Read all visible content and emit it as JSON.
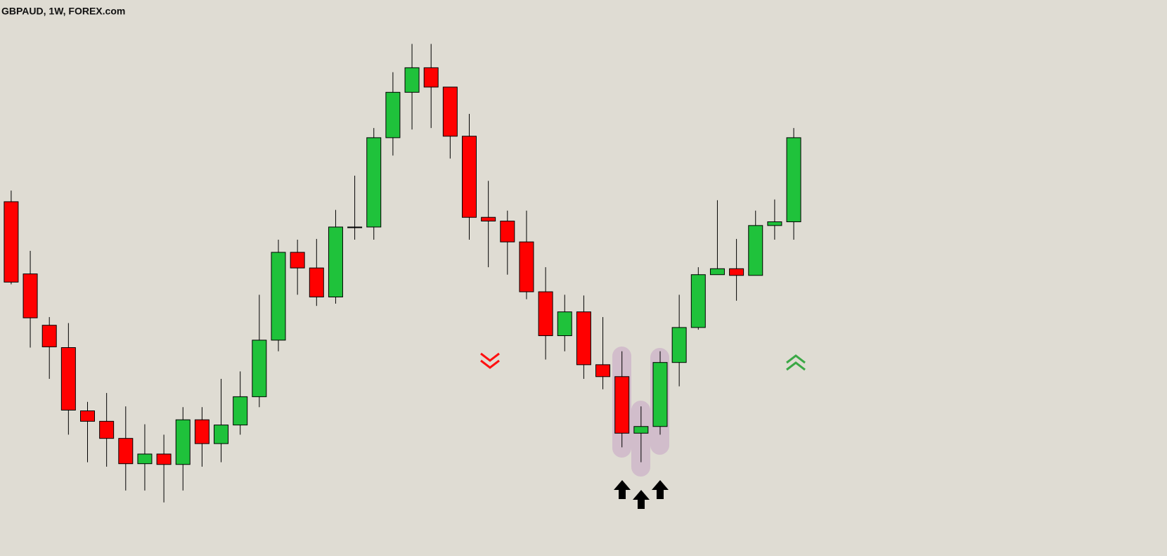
{
  "chart_data": {
    "type": "candlestick",
    "title": "GBPAUD, 1W, FOREX.com",
    "categories": [
      null,
      null,
      null,
      null,
      null,
      null,
      null,
      null,
      null,
      null,
      null,
      null,
      null,
      null,
      null,
      null,
      null,
      null,
      null,
      null,
      null,
      null,
      null,
      null,
      null,
      null,
      null,
      null,
      null,
      null,
      null,
      null,
      null,
      null,
      null,
      null,
      null,
      null,
      null,
      null,
      null,
      null
    ],
    "open": [
      476,
      379,
      310,
      280,
      195,
      181,
      158,
      124,
      137,
      123,
      183,
      151,
      176,
      214,
      290,
      408,
      387,
      348,
      442,
      442,
      562,
      623,
      656,
      630,
      564,
      455,
      450,
      422,
      355,
      296,
      328,
      257,
      241,
      165,
      174,
      260,
      307,
      378,
      386,
      377,
      444,
      449
    ],
    "high": [
      491,
      410,
      321,
      313,
      207,
      219,
      201,
      177,
      163,
      200,
      200,
      238,
      248,
      351,
      425,
      425,
      426,
      465,
      511,
      575,
      650,
      688,
      688,
      630,
      594,
      504,
      464,
      464,
      388,
      351,
      350,
      321,
      275,
      201,
      275,
      351,
      388,
      478,
      426,
      464,
      479,
      575
    ],
    "low": [
      365,
      280,
      238,
      163,
      126,
      120,
      88,
      88,
      72,
      88,
      120,
      126,
      163,
      200,
      275,
      351,
      336,
      339,
      425,
      425,
      538,
      573,
      575,
      534,
      425,
      388,
      378,
      345,
      264,
      275,
      238,
      224,
      146,
      126,
      163,
      228,
      304,
      378,
      343,
      377,
      425,
      425
    ],
    "close": [
      368,
      320,
      281,
      196,
      181,
      158,
      124,
      137,
      123,
      183,
      151,
      176,
      214,
      290,
      408,
      387,
      348,
      442,
      442,
      562,
      623,
      656,
      630,
      564,
      455,
      450,
      422,
      355,
      296,
      328,
      257,
      241,
      165,
      174,
      260,
      307,
      378,
      386,
      377,
      444,
      449,
      562
    ],
    "ylim": [
      0,
      747
    ],
    "up_color": "#1fc23b",
    "down_color": "#ff0000"
  }
}
